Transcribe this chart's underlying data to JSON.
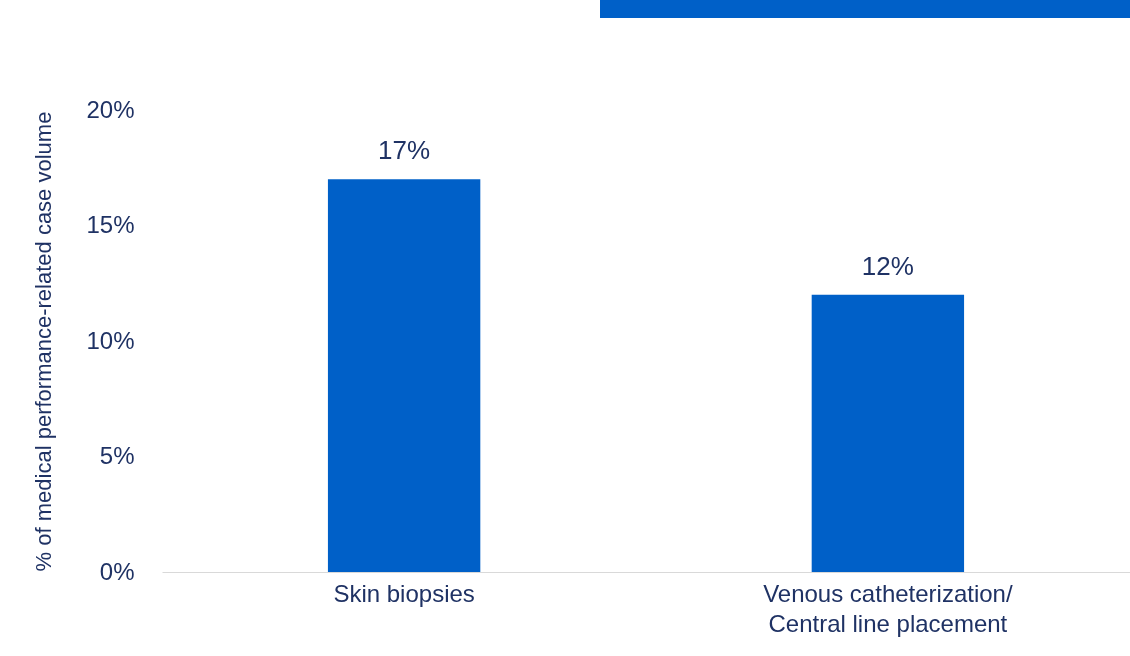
{
  "chart_data": {
    "type": "bar",
    "ylabel": "% of medical performance-related case volume",
    "categories": [
      "Skin biopsies",
      "Venous catheterization/\nCentral line placement"
    ],
    "values": [
      17,
      12
    ],
    "color": "#0060c8",
    "value_labels": [
      "17%",
      "12%"
    ],
    "ylim": [
      0,
      20
    ],
    "yticks": [
      {
        "value": 0,
        "label": "0%"
      },
      {
        "value": 5,
        "label": "5%"
      },
      {
        "value": 10,
        "label": "10%"
      },
      {
        "value": 15,
        "label": "15%"
      },
      {
        "value": 20,
        "label": "20%"
      }
    ],
    "grid": false
  }
}
